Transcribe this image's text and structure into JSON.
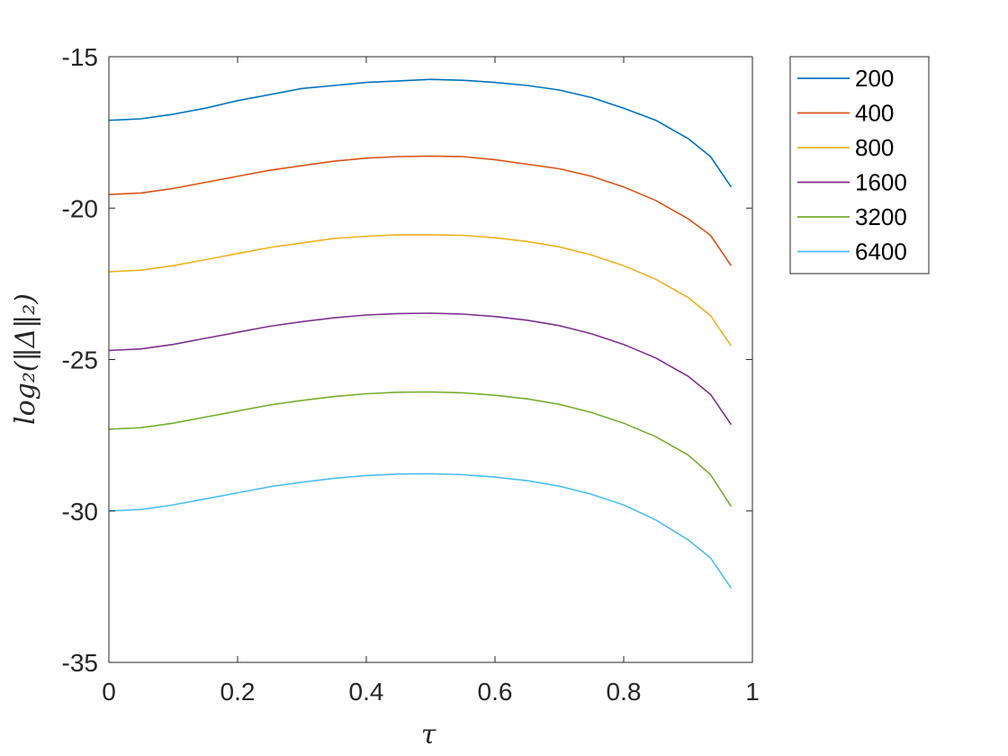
{
  "chart_data": {
    "type": "line",
    "xlabel": "τ",
    "ylabel": "log₂(‖Δ‖₂)",
    "xlim": [
      0,
      1
    ],
    "ylim": [
      -35,
      -15
    ],
    "x_ticks": [
      "0",
      "0.2",
      "0.4",
      "0.6",
      "0.8",
      "1"
    ],
    "y_ticks": [
      "-15",
      "-20",
      "-25",
      "-30",
      "-35"
    ],
    "grid": false,
    "legend_position": "outside-top-right",
    "x": [
      0,
      0.05,
      0.1,
      0.15,
      0.2,
      0.25,
      0.3,
      0.35,
      0.4,
      0.45,
      0.5,
      0.55,
      0.6,
      0.65,
      0.7,
      0.75,
      0.8,
      0.85,
      0.9,
      0.935,
      0.967
    ],
    "series": [
      {
        "name": "200",
        "color": "#0072BD",
        "values": [
          -17.1,
          -17.05,
          -16.9,
          -16.7,
          -16.45,
          -16.25,
          -16.05,
          -15.95,
          -15.85,
          -15.8,
          -15.75,
          -15.78,
          -15.85,
          -15.95,
          -16.1,
          -16.35,
          -16.7,
          -17.1,
          -17.7,
          -18.3,
          -19.3
        ]
      },
      {
        "name": "400",
        "color": "#D95319",
        "values": [
          -19.55,
          -19.5,
          -19.35,
          -19.15,
          -18.95,
          -18.75,
          -18.6,
          -18.45,
          -18.35,
          -18.3,
          -18.28,
          -18.3,
          -18.4,
          -18.55,
          -18.7,
          -18.95,
          -19.3,
          -19.75,
          -20.35,
          -20.9,
          -21.9
        ]
      },
      {
        "name": "800",
        "color": "#EDB120",
        "values": [
          -22.1,
          -22.05,
          -21.9,
          -21.7,
          -21.5,
          -21.3,
          -21.15,
          -21.0,
          -20.93,
          -20.88,
          -20.88,
          -20.9,
          -20.98,
          -21.1,
          -21.28,
          -21.55,
          -21.9,
          -22.35,
          -22.95,
          -23.55,
          -24.55
        ]
      },
      {
        "name": "1600",
        "color": "#7E2F8E",
        "values": [
          -24.7,
          -24.65,
          -24.5,
          -24.3,
          -24.1,
          -23.9,
          -23.75,
          -23.62,
          -23.53,
          -23.48,
          -23.47,
          -23.5,
          -23.58,
          -23.7,
          -23.88,
          -24.15,
          -24.5,
          -24.95,
          -25.55,
          -26.15,
          -27.15
        ]
      },
      {
        "name": "3200",
        "color": "#77AC30",
        "values": [
          -27.3,
          -27.25,
          -27.1,
          -26.9,
          -26.7,
          -26.5,
          -26.35,
          -26.22,
          -26.13,
          -26.08,
          -26.07,
          -26.1,
          -26.18,
          -26.3,
          -26.48,
          -26.75,
          -27.1,
          -27.55,
          -28.15,
          -28.8,
          -29.85
        ]
      },
      {
        "name": "6400",
        "color": "#4DBEEE",
        "values": [
          -30.0,
          -29.95,
          -29.8,
          -29.6,
          -29.4,
          -29.2,
          -29.05,
          -28.92,
          -28.83,
          -28.78,
          -28.77,
          -28.8,
          -28.88,
          -29.0,
          -29.18,
          -29.45,
          -29.8,
          -30.3,
          -30.95,
          -31.55,
          -32.55
        ]
      }
    ]
  }
}
